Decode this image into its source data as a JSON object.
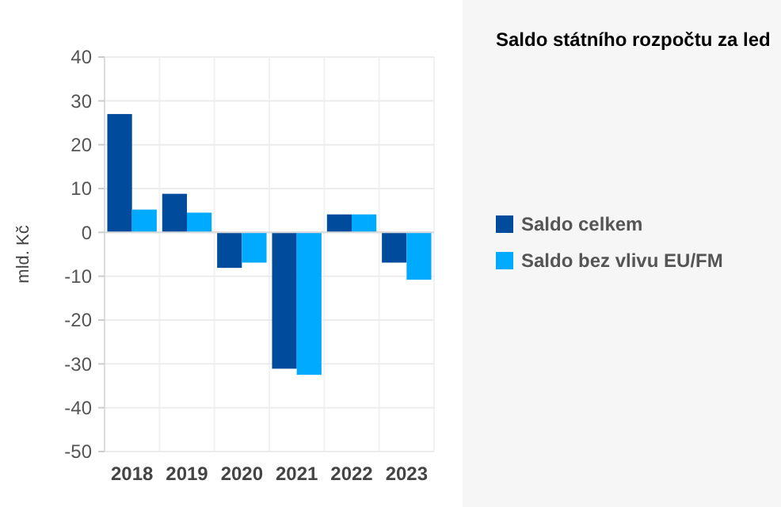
{
  "chart_data": {
    "type": "bar",
    "title": "Saldo státního rozpočtu za led",
    "ylabel": "mld. Kč",
    "categories": [
      "2018",
      "2019",
      "2020",
      "2021",
      "2022",
      "2023"
    ],
    "series": [
      {
        "name": "Saldo celkem",
        "color": "#004b9b",
        "values": [
          27,
          8.8,
          -8.1,
          -31.1,
          4.1,
          -6.9
        ]
      },
      {
        "name": "Saldo bez vlivu EU/FM",
        "color": "#00aaff",
        "values": [
          5.2,
          4.5,
          -6.9,
          -32.5,
          4.1,
          -10.8
        ]
      }
    ],
    "ylim": [
      -50,
      40
    ],
    "yticks": [
      -50,
      -40,
      -30,
      -20,
      -10,
      0,
      10,
      20,
      30,
      40
    ],
    "grid": true,
    "legend": "right"
  }
}
